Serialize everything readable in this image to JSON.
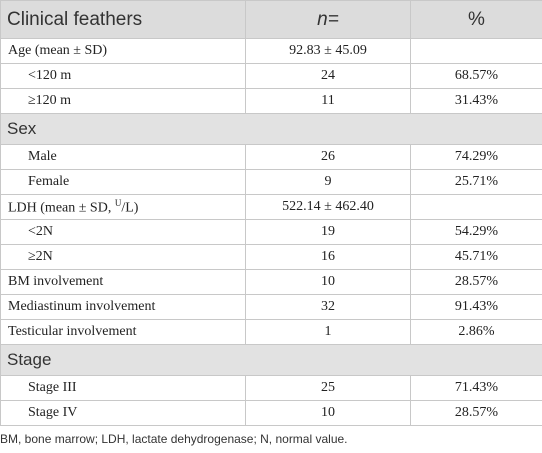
{
  "table": {
    "header": [
      "Clinical feathers",
      "n=",
      "%"
    ],
    "rows": [
      {
        "cells": [
          "Age (mean ± SD)",
          "92.83 ± 45.09",
          null
        ],
        "sub": [
          [
            "<120 m",
            "24",
            "68.57%"
          ],
          [
            "≥120 m",
            "11",
            "31.43%"
          ]
        ]
      },
      {
        "section": "Sex",
        "sub": [
          [
            "Male",
            "26",
            "74.29%"
          ],
          [
            "Female",
            "9",
            "25.71%"
          ]
        ]
      },
      {
        "cells": [
          [
            "LDH (mean ± SD, ",
            "U",
            "/L)"
          ],
          "522.14 ± 462.40",
          null
        ],
        "sub": [
          [
            "<2N",
            "19",
            "54.29%"
          ],
          [
            "≥2N",
            "16",
            "45.71%"
          ]
        ]
      },
      {
        "cells": [
          "BM involvement",
          "10",
          "28.57%"
        ]
      },
      {
        "cells": [
          "Mediastinum involvement",
          "32",
          "91.43%"
        ]
      },
      {
        "cells": [
          "Testicular involvement",
          "1",
          "2.86%"
        ]
      },
      {
        "section": "Stage",
        "sub": [
          [
            "Stage III",
            "25",
            "71.43%"
          ],
          [
            "Stage IV",
            "10",
            "28.57%"
          ]
        ]
      }
    ]
  },
  "footnote": "BM, bone marrow; LDH, lactate dehydrogenase; N, normal value."
}
